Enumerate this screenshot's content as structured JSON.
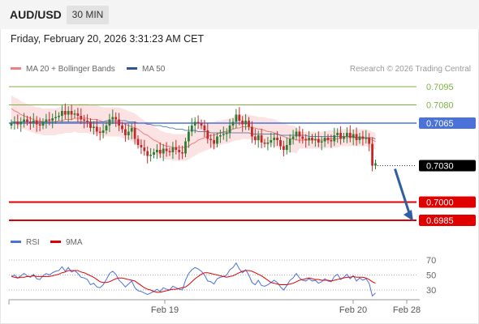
{
  "header": {
    "pair": "AUD/USD",
    "timeframe": "30 MIN"
  },
  "datetime": "Friday, February 20, 2026 3:31:23 AM CET",
  "legend": [
    {
      "label": "MA 20 + Bollinger Bands",
      "color": "#f08080"
    },
    {
      "label": "MA 50",
      "color": "#2f5597"
    }
  ],
  "research_credit": "Research © 2026 Trading Central",
  "rsi_legend": [
    {
      "label": "RSI",
      "color": "#4a72d9"
    },
    {
      "label": "9MA",
      "color": "#e00000"
    }
  ],
  "colors": {
    "up": "#2e7d32",
    "down": "#c62828",
    "support": "#e00000",
    "pivot": "#4a72d9",
    "resistance": "#7cb342",
    "arrow": "#2f5f9e",
    "bollinger": "#fbdede"
  },
  "chart_data": [
    {
      "type": "candlestick",
      "instrument": "AUD/USD",
      "timeframe": "30 MIN",
      "ylim": [
        0.6985,
        0.7095
      ],
      "x_ticks": [
        "Feb 19",
        "Feb 20",
        "Feb 28"
      ],
      "levels": [
        {
          "value": 0.7095,
          "label": "0.7095",
          "kind": "resistance"
        },
        {
          "value": 0.708,
          "label": "0.7080",
          "kind": "resistance"
        },
        {
          "value": 0.7065,
          "label": "0.7065",
          "kind": "pivot"
        },
        {
          "value": 0.703,
          "label": "0.7030",
          "kind": "last"
        },
        {
          "value": 0.7,
          "label": "0.7000",
          "kind": "support"
        },
        {
          "value": 0.6985,
          "label": "0.6985",
          "kind": "support"
        }
      ],
      "forecast": {
        "from": 0.703,
        "to": 0.6985,
        "direction": "down"
      },
      "close": [
        0.7065,
        0.7066,
        0.7064,
        0.7066,
        0.7068,
        0.7066,
        0.7065,
        0.7067,
        0.7064,
        0.7063,
        0.7066,
        0.7068,
        0.7067,
        0.7069,
        0.707,
        0.7071,
        0.7075,
        0.7072,
        0.7075,
        0.7072,
        0.7073,
        0.7071,
        0.7068,
        0.7067,
        0.7066,
        0.7061,
        0.7062,
        0.7058,
        0.7057,
        0.7059,
        0.7063,
        0.7068,
        0.707,
        0.7068,
        0.7063,
        0.706,
        0.7055,
        0.7058,
        0.7061,
        0.7052,
        0.7047,
        0.7045,
        0.7042,
        0.7038,
        0.7039,
        0.7041,
        0.7043,
        0.704,
        0.7044,
        0.7042,
        0.7041,
        0.7045,
        0.7043,
        0.7041,
        0.704,
        0.705,
        0.7058,
        0.7063,
        0.7066,
        0.7065,
        0.7063,
        0.7059,
        0.7052,
        0.7051,
        0.7048,
        0.7054,
        0.7055,
        0.7056,
        0.7057,
        0.7063,
        0.7066,
        0.7072,
        0.7067,
        0.7064,
        0.7067,
        0.7062,
        0.7054,
        0.7051,
        0.7055,
        0.7049,
        0.7048,
        0.7049,
        0.7051,
        0.7053,
        0.7051,
        0.7046,
        0.7043,
        0.7047,
        0.7052,
        0.7054,
        0.7058,
        0.7054,
        0.7052,
        0.7051,
        0.7053,
        0.7051,
        0.7052,
        0.7049,
        0.705,
        0.7053,
        0.7051,
        0.705,
        0.7055,
        0.7057,
        0.7052,
        0.7054,
        0.7057,
        0.7053,
        0.7056,
        0.7051,
        0.7054,
        0.7052,
        0.7053,
        0.7048,
        0.703,
        0.7032
      ],
      "ma20": [
        0.7077,
        0.7075,
        0.7074,
        0.7072,
        0.7071,
        0.707,
        0.7069,
        0.7068,
        0.7067,
        0.7067,
        0.7066,
        0.7066,
        0.7066,
        0.7066,
        0.7066,
        0.7067,
        0.7067,
        0.7068,
        0.7068,
        0.7068,
        0.7069,
        0.7069,
        0.7069,
        0.7069,
        0.7069,
        0.7068,
        0.7068,
        0.7068,
        0.7067,
        0.7066,
        0.7066,
        0.7066,
        0.7066,
        0.7066,
        0.7066,
        0.7065,
        0.7064,
        0.7063,
        0.7062,
        0.7061,
        0.706,
        0.7058,
        0.7056,
        0.7055,
        0.7053,
        0.7051,
        0.705,
        0.7048,
        0.7047,
        0.7046,
        0.7046,
        0.7045,
        0.7045,
        0.7045,
        0.7045,
        0.7045,
        0.7046,
        0.7048,
        0.7049,
        0.7051,
        0.7052,
        0.7053,
        0.7054,
        0.7055,
        0.7055,
        0.7056,
        0.7057,
        0.7058,
        0.7058,
        0.7059,
        0.706,
        0.7061,
        0.7061,
        0.7062,
        0.7062,
        0.7062,
        0.7061,
        0.7061,
        0.706,
        0.706,
        0.7059,
        0.7058,
        0.7058,
        0.7057,
        0.7056,
        0.7055,
        0.7054,
        0.7053,
        0.7052,
        0.7052,
        0.7051,
        0.7051,
        0.7051,
        0.7051,
        0.7051,
        0.7051,
        0.7051,
        0.7051,
        0.7051,
        0.7051,
        0.7052,
        0.7052,
        0.7052,
        0.7052,
        0.7053,
        0.7053,
        0.7053,
        0.7053,
        0.7053,
        0.7053,
        0.7053,
        0.7053,
        0.7053,
        0.7052,
        0.7051,
        0.705
      ],
      "ma50": [
        0.7066,
        0.7066,
        0.7066,
        0.7066,
        0.7066,
        0.7066,
        0.7066,
        0.7066,
        0.7066,
        0.7066,
        0.7066,
        0.7066,
        0.7066,
        0.7066,
        0.7066,
        0.7066,
        0.7066,
        0.7066,
        0.7066,
        0.7066,
        0.7066,
        0.7066,
        0.7066,
        0.7066,
        0.7066,
        0.7066,
        0.7066,
        0.7066,
        0.7066,
        0.7066,
        0.7067,
        0.7067,
        0.7067,
        0.7067,
        0.7067,
        0.7067,
        0.7067,
        0.7066,
        0.7066,
        0.7066,
        0.7065,
        0.7065,
        0.7065,
        0.7064,
        0.7064,
        0.7063,
        0.7063,
        0.7063,
        0.7062,
        0.7062,
        0.7061,
        0.7061,
        0.706,
        0.706,
        0.706,
        0.7059,
        0.7059,
        0.7059,
        0.7059,
        0.7058,
        0.7058,
        0.7058,
        0.7058,
        0.7057,
        0.7057,
        0.7057,
        0.7057,
        0.7057,
        0.7057,
        0.7057,
        0.7057,
        0.7057,
        0.7057,
        0.7057,
        0.7057,
        0.7057,
        0.7056,
        0.7056,
        0.7056,
        0.7056,
        0.7056,
        0.7056,
        0.7056,
        0.7056,
        0.7056,
        0.7055,
        0.7055,
        0.7055,
        0.7055,
        0.7055,
        0.7055,
        0.7055,
        0.7055,
        0.7055,
        0.7054,
        0.7054,
        0.7054,
        0.7054,
        0.7054,
        0.7054,
        0.7054,
        0.7054,
        0.7054,
        0.7054,
        0.7054,
        0.7054,
        0.7054,
        0.7054,
        0.7054,
        0.7053,
        0.7053,
        0.7053,
        0.7053,
        0.7053,
        0.7053,
        0.7052
      ]
    },
    {
      "type": "line",
      "name": "RSI",
      "ylim": [
        30,
        70
      ],
      "y_ticks": [
        70,
        50,
        30
      ],
      "series": [
        {
          "name": "RSI",
          "color": "#4a72d9",
          "values": [
            48,
            50,
            46,
            49,
            52,
            49,
            47,
            51,
            45,
            44,
            49,
            52,
            50,
            53,
            55,
            56,
            61,
            55,
            60,
            54,
            56,
            52,
            47,
            46,
            44,
            37,
            39,
            34,
            33,
            37,
            44,
            52,
            55,
            51,
            43,
            39,
            34,
            38,
            42,
            33,
            29,
            28,
            26,
            24,
            26,
            28,
            31,
            28,
            33,
            31,
            30,
            35,
            33,
            31,
            30,
            43,
            52,
            57,
            60,
            58,
            55,
            50,
            42,
            41,
            38,
            45,
            47,
            48,
            50,
            57,
            60,
            66,
            58,
            53,
            57,
            50,
            40,
            37,
            43,
            36,
            35,
            37,
            40,
            43,
            40,
            34,
            30,
            36,
            43,
            46,
            52,
            46,
            43,
            42,
            45,
            42,
            43,
            39,
            41,
            45,
            42,
            41,
            48,
            51,
            44,
            47,
            51,
            45,
            49,
            42,
            46,
            43,
            45,
            39,
            22,
            26
          ]
        },
        {
          "name": "9MA",
          "color": "#e00000",
          "values": [
            48,
            47,
            46,
            47,
            47,
            48,
            48,
            49,
            48,
            48,
            48,
            48,
            48,
            49,
            50,
            51,
            53,
            54,
            56,
            56,
            56,
            56,
            54,
            53,
            51,
            49,
            47,
            44,
            41,
            40,
            40,
            41,
            43,
            45,
            46,
            46,
            45,
            44,
            43,
            42,
            39,
            36,
            33,
            31,
            30,
            28,
            27,
            27,
            28,
            29,
            30,
            31,
            31,
            32,
            33,
            34,
            37,
            41,
            45,
            48,
            51,
            53,
            53,
            52,
            51,
            50,
            49,
            48,
            47,
            48,
            49,
            51,
            53,
            55,
            56,
            56,
            55,
            53,
            51,
            49,
            46,
            43,
            40,
            39,
            38,
            37,
            37,
            37,
            38,
            39,
            41,
            43,
            44,
            45,
            46,
            45,
            44,
            44,
            43,
            43,
            43,
            42,
            43,
            44,
            45,
            46,
            47,
            47,
            48,
            47,
            47,
            47,
            46,
            44,
            41,
            39
          ]
        }
      ]
    }
  ]
}
